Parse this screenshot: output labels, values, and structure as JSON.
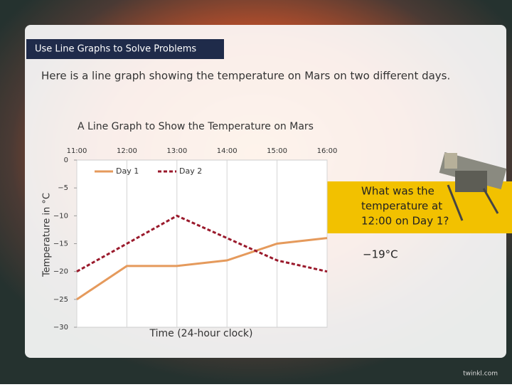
{
  "header": {
    "label": "Use Line Graphs to Solve Problems"
  },
  "intro": "Here is a line graph showing the temperature on Mars on two different days.",
  "chart_data": {
    "type": "line",
    "title": "A Line Graph to Show the Temperature on Mars",
    "categories": [
      "11:00",
      "12:00",
      "13:00",
      "14:00",
      "15:00",
      "16:00"
    ],
    "series": [
      {
        "name": "Day 1",
        "color": "#e59a5c",
        "style": "solid",
        "values": [
          -25,
          -19,
          -19,
          -18,
          -15,
          -14
        ]
      },
      {
        "name": "Day 2",
        "color": "#9a1a2c",
        "style": "dashed",
        "values": [
          -20,
          -15,
          -10,
          -14,
          -18,
          -20
        ]
      }
    ],
    "ylim": [
      -30,
      0
    ],
    "yticks": [
      0,
      {
        "value": -5,
        "label": "−5"
      },
      {
        "value": -10,
        "label": "−10"
      },
      {
        "value": -15,
        "label": "−15"
      },
      {
        "value": -20,
        "label": "−20"
      },
      {
        "value": -25,
        "label": "−25"
      },
      {
        "value": -30,
        "label": "−30"
      }
    ],
    "ylabel": "Temperature in °C",
    "xlabel": "Time (24-hour clock)",
    "grid": true,
    "legend": "top"
  },
  "question": {
    "lines": [
      "What was the",
      "temperature at",
      "12:00 on Day 1?"
    ],
    "answer": "−19°C"
  },
  "footer": "twinkl.com"
}
